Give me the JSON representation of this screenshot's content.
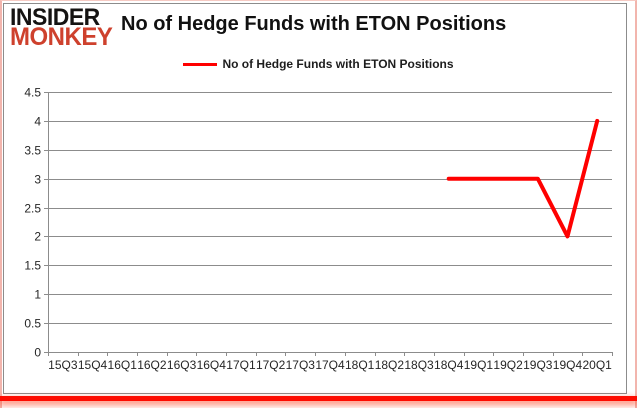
{
  "header": {
    "logo_line1": "INSIDER",
    "logo_line2": "MONKEY",
    "title": "No of Hedge Funds with ETON Positions"
  },
  "legend": {
    "label": "No of Hedge Funds with ETON Positions"
  },
  "colors": {
    "series_line": "#ff0000",
    "logo_red": "#ce412d",
    "logo_black": "#151312",
    "grid": "#8c8c8c",
    "axis": "#8c8c8c",
    "tick_text": "#262626",
    "frame_pink": "#f2b5ad",
    "bottom_bar": "#fe0b00"
  },
  "chart_data": {
    "type": "line",
    "title": "No of Hedge Funds with ETON Positions",
    "categories": [
      "15Q3",
      "15Q4",
      "16Q1",
      "16Q2",
      "16Q3",
      "16Q4",
      "17Q1",
      "17Q2",
      "17Q3",
      "17Q4",
      "18Q1",
      "18Q2",
      "18Q3",
      "18Q4",
      "19Q1",
      "19Q2",
      "19Q3",
      "19Q4",
      "20Q1"
    ],
    "series": [
      {
        "name": "No of Hedge Funds with ETON Positions",
        "values": [
          null,
          null,
          null,
          null,
          null,
          null,
          null,
          null,
          null,
          null,
          null,
          null,
          null,
          3,
          3,
          3,
          3,
          2,
          4
        ]
      }
    ],
    "ylim": [
      0,
      4.5
    ],
    "ytick_labels": [
      "0",
      "0.5",
      "1",
      "1.5",
      "2",
      "2.5",
      "3",
      "3.5",
      "4",
      "4.5"
    ],
    "grid": true,
    "legend_position": "top-center",
    "xlabel": "",
    "ylabel": ""
  }
}
